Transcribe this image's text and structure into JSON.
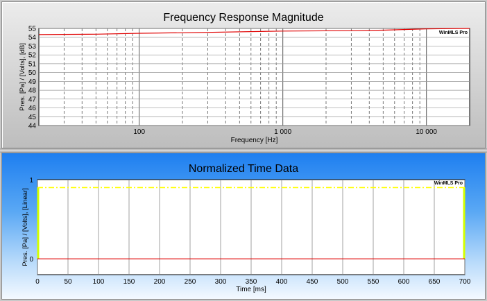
{
  "chart_data": [
    {
      "type": "line",
      "title": "Frequency Response Magnitude",
      "xlabel": "Frequency [Hz]",
      "ylabel": "Pres. [Pa] / [Volts], [dB]",
      "xscale": "log",
      "xlim": [
        20,
        20000
      ],
      "ylim": [
        44,
        55
      ],
      "y_ticks": [
        "44",
        "45",
        "46",
        "47",
        "48",
        "49",
        "50",
        "51",
        "52",
        "53",
        "54",
        "55"
      ],
      "x_tick_labels": [
        {
          "value": 100,
          "label": "100"
        },
        {
          "value": 1000,
          "label": "1 000"
        },
        {
          "value": 10000,
          "label": "10 000"
        }
      ],
      "grid": true,
      "watermark": "WinMLS Pro",
      "series": [
        {
          "color": "#e00000",
          "points": [
            [
              20,
              54.3
            ],
            [
              50,
              54.35
            ],
            [
              100,
              54.45
            ],
            [
              300,
              54.55
            ],
            [
              1000,
              54.7
            ],
            [
              3000,
              54.75
            ],
            [
              5000,
              54.8
            ],
            [
              10000,
              54.95
            ],
            [
              20000,
              55.0
            ]
          ]
        }
      ]
    },
    {
      "type": "line",
      "title": "Normalized Time Data",
      "xlabel": "Time [ms]",
      "ylabel": "Pres. [Pa] / [Volts], [Linear]",
      "xlim": [
        0,
        700
      ],
      "ylim": [
        -0.2,
        1
      ],
      "x_ticks": [
        0,
        50,
        100,
        150,
        200,
        250,
        300,
        350,
        400,
        450,
        500,
        550,
        600,
        650,
        700
      ],
      "y_ticks": [
        0,
        1
      ],
      "grid": true,
      "watermark": "WinMLS Pro",
      "series": [
        {
          "color": "#e00000",
          "points": [
            [
              0,
              0
            ],
            [
              700,
              0
            ]
          ]
        },
        {
          "color": "#ffff00",
          "style": "dash-dot",
          "points": [
            [
              0,
              0.9
            ],
            [
              700,
              0.9
            ]
          ]
        }
      ]
    }
  ]
}
